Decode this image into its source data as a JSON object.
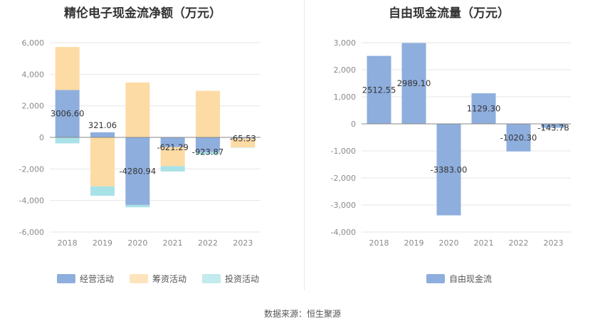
{
  "footer": {
    "source": "数据来源：恒生聚源"
  },
  "colors": {
    "operating": "#8eaedd",
    "financing": "#fddba4",
    "investing": "#a9e2e6",
    "free": "#8eaedd",
    "grid": "#e6e6e6",
    "axis": "#888888"
  },
  "chart_data": [
    {
      "type": "bar",
      "stacked": true,
      "title": "精伦电子现金流净额（万元）",
      "categories": [
        "2018",
        "2019",
        "2020",
        "2021",
        "2022",
        "2023"
      ],
      "ylim": [
        -6000,
        6000
      ],
      "yticks": [
        6000,
        4000,
        2000,
        0,
        -2000,
        -4000,
        -6000
      ],
      "ytick_labels": [
        "6,000",
        "4,000",
        "2,000",
        "0",
        "-2,000",
        "-4,000",
        "-6,000"
      ],
      "grid": true,
      "legend_position": "bottom",
      "series": [
        {
          "name": "经营活动",
          "values": [
            3006.6,
            321.06,
            -4280.94,
            -621.29,
            -923.87,
            -65.53
          ]
        },
        {
          "name": "筹资活动",
          "values": [
            2720,
            -3100,
            3480,
            -1200,
            2950,
            -570
          ]
        },
        {
          "name": "投资活动",
          "values": [
            -380,
            -600,
            -150,
            -340,
            -140,
            -20
          ]
        }
      ],
      "data_labels": [
        "3006.60",
        "321.06",
        "-4280.94",
        "-621.29",
        "-923.87",
        "-65.53"
      ]
    },
    {
      "type": "bar",
      "title": "自由现金流量（万元）",
      "categories": [
        "2018",
        "2019",
        "2020",
        "2021",
        "2022",
        "2023"
      ],
      "ylim": [
        -4000,
        3000
      ],
      "yticks": [
        3000,
        2000,
        1000,
        0,
        -1000,
        -2000,
        -3000,
        -4000
      ],
      "ytick_labels": [
        "3,000",
        "2,000",
        "1,000",
        "0",
        "-1,000",
        "-2,000",
        "-3,000",
        "-4,000"
      ],
      "grid": true,
      "legend_position": "bottom",
      "series": [
        {
          "name": "自由现金流",
          "values": [
            2512.55,
            2989.1,
            -3383.0,
            1129.3,
            -1020.3,
            -143.78
          ]
        }
      ],
      "data_labels": [
        "2512.55",
        "2989.10",
        "-3383.00",
        "1129.30",
        "-1020.30",
        "-143.78"
      ]
    }
  ]
}
